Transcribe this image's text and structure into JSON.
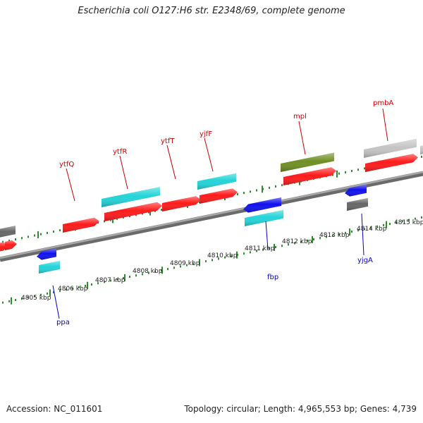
{
  "title": "Escherichia coli O127:H6 str. E2348/69, complete genome",
  "footer": {
    "accession": "Accession: NC_011601",
    "summary": "Topology: circular; Length: 4,965,553 bp; Genes: 4,739"
  },
  "colors": {
    "backbone": "#888888",
    "tick": "#2e8b2e",
    "gene_label_forward": "#cc0000",
    "gene_label_reverse": "#0000cc",
    "red": "#ff1a1a",
    "cyan": "#22d4d8",
    "blue": "#1010ee",
    "grey": "#666666",
    "olive": "#6f8e23",
    "lightgrey": "#c4c4c4"
  },
  "kbp_labels": [
    "4805 kbp",
    "4806 kbp",
    "4807 kbp",
    "4808 kbp",
    "4809 kbp",
    "4810 kbp",
    "4811 kbp",
    "4812 kbp",
    "4813 kbp",
    "4814 kbp",
    "4815 kbp"
  ],
  "gene_labels": [
    {
      "name": "ytfQ",
      "strand": "forward"
    },
    {
      "name": "ytfR",
      "strand": "forward"
    },
    {
      "name": "ytfT",
      "strand": "forward"
    },
    {
      "name": "yjfF",
      "strand": "forward"
    },
    {
      "name": "mpl",
      "strand": "forward"
    },
    {
      "name": "pmbA",
      "strand": "forward"
    },
    {
      "name": "ppa",
      "strand": "reverse"
    },
    {
      "name": "fbp",
      "strand": "reverse"
    },
    {
      "name": "yjgA",
      "strand": "reverse"
    }
  ]
}
